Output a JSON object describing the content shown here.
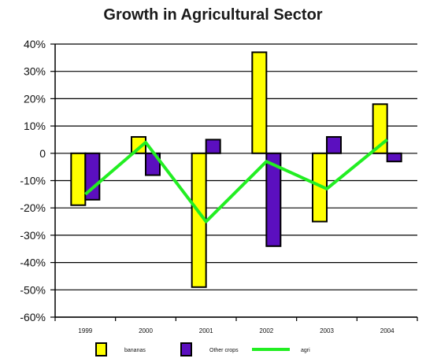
{
  "chart_data": {
    "type": "bar",
    "title": "Growth in Agricultural Sector",
    "xlabel": "",
    "ylabel": "",
    "categories": [
      "1999",
      "2000",
      "2001",
      "2002",
      "2003",
      "2004"
    ],
    "ylim": [
      -60,
      40
    ],
    "yticks": [
      40,
      30,
      20,
      10,
      0,
      -10,
      -20,
      -30,
      -40,
      -50,
      -60
    ],
    "ytick_labels": [
      "40%",
      "30%",
      "20%",
      "10%",
      "0",
      "-10%",
      "-20%",
      "-30%",
      "-40%",
      "-50%",
      "-60%"
    ],
    "grid": "horizontal",
    "legend_position": "bottom",
    "series": [
      {
        "name": "bananas",
        "kind": "bar",
        "color": "#ffff00",
        "values": [
          -19,
          6,
          -49,
          37,
          -25,
          18
        ]
      },
      {
        "name": "Other crops",
        "kind": "bar",
        "color": "#5b0fbf",
        "values": [
          -17,
          -8,
          5,
          -34,
          6,
          -3
        ]
      },
      {
        "name": "agri",
        "kind": "line",
        "color": "#22ee22",
        "values": [
          -15,
          4,
          -25,
          -3,
          -13,
          5
        ]
      }
    ]
  }
}
